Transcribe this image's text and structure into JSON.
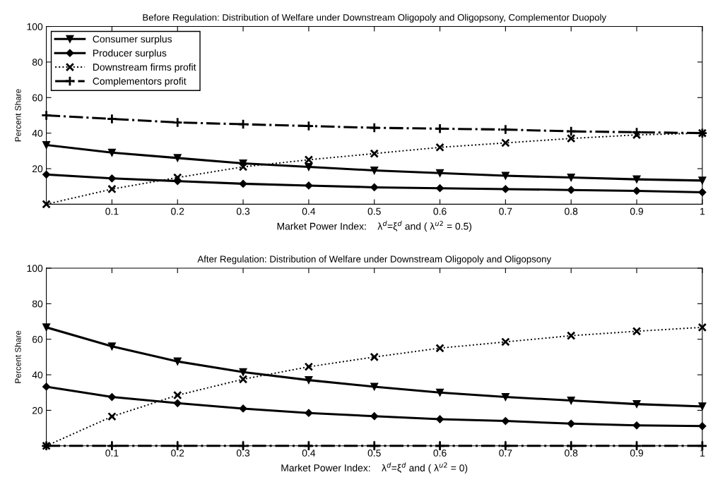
{
  "chart_data": [
    {
      "type": "line",
      "title": "Before Regulation: Distribution of Welfare under Downstream Oligopoly and Oligopsony, Complementor Duopoly",
      "xlabel": "Market Power Index:    λ$^{d}$=ξ$^{d}$ and ( λ$^{u2}$ = 0.5)",
      "ylabel": "Percent Share",
      "x": [
        0,
        0.1,
        0.2,
        0.3,
        0.4,
        0.5,
        0.6,
        0.7,
        0.8,
        0.9,
        1
      ],
      "xlim": [
        0,
        1
      ],
      "ylim": [
        0,
        100
      ],
      "xticks": [
        0.1,
        0.2,
        0.3,
        0.4,
        0.5,
        0.6,
        0.7,
        0.8,
        0.9,
        1
      ],
      "yticks": [
        20,
        40,
        60,
        80,
        100
      ],
      "grid": false,
      "legend": "top left",
      "series": [
        {
          "name": "Consumer surplus",
          "color": "#000000",
          "marker": "triangle",
          "line_style": "solid",
          "values": [
            33.3,
            29,
            26,
            23,
            21,
            19,
            17.5,
            16,
            15,
            14,
            13.3
          ]
        },
        {
          "name": "Producer surplus",
          "color": "#000000",
          "marker": "diamond",
          "line_style": "solid",
          "values": [
            16.7,
            14.5,
            13,
            11.5,
            10.5,
            9.5,
            9,
            8.5,
            8,
            7.5,
            6.7
          ]
        },
        {
          "name": "Downstream firms profit",
          "color": "#000000",
          "marker": "cross",
          "line_style": "dotted",
          "values": [
            0,
            8.5,
            15,
            21,
            25,
            28.5,
            32,
            34.5,
            37,
            39,
            40
          ]
        },
        {
          "name": "Complementors profit",
          "color": "#000000",
          "marker": "plus",
          "line_style": "dashdot",
          "values": [
            50,
            48,
            46,
            45,
            44,
            43,
            42.5,
            42,
            41,
            40.5,
            40
          ]
        }
      ]
    },
    {
      "type": "line",
      "title": "After Regulation: Distribution of Welfare under Downstream Oligopoly and Oligopsony",
      "xlabel": "Market Power Index:    λ$^{d}$=ξ$^{d}$ and ( λ$^{u2}$ = 0)",
      "ylabel": "Percent Share",
      "x": [
        0,
        0.1,
        0.2,
        0.3,
        0.4,
        0.5,
        0.6,
        0.7,
        0.8,
        0.9,
        1
      ],
      "xlim": [
        0,
        1
      ],
      "ylim": [
        0,
        100
      ],
      "xticks": [
        0.1,
        0.2,
        0.3,
        0.4,
        0.5,
        0.6,
        0.7,
        0.8,
        0.9,
        1
      ],
      "yticks": [
        20,
        40,
        60,
        80,
        100
      ],
      "grid": false,
      "series": [
        {
          "color": "#000000",
          "marker": "triangle",
          "line_style": "solid",
          "values": [
            66.7,
            56,
            47.5,
            41.5,
            37,
            33.3,
            30,
            27.5,
            25.5,
            23.5,
            22.2
          ]
        },
        {
          "color": "#000000",
          "marker": "diamond",
          "line_style": "solid",
          "values": [
            33.3,
            27.5,
            24,
            21,
            18.5,
            16.7,
            15,
            14,
            12.5,
            11.5,
            11.1
          ]
        },
        {
          "color": "#000000",
          "marker": "cross",
          "line_style": "dotted",
          "values": [
            0,
            16.5,
            28.5,
            37.5,
            44.5,
            50,
            55,
            58.5,
            62,
            64.5,
            66.7
          ]
        },
        {
          "color": "#000000",
          "marker": "plus",
          "line_style": "dashdot",
          "values": [
            0,
            0,
            0,
            0,
            0,
            0,
            0,
            0,
            0,
            0,
            0
          ]
        }
      ]
    }
  ]
}
